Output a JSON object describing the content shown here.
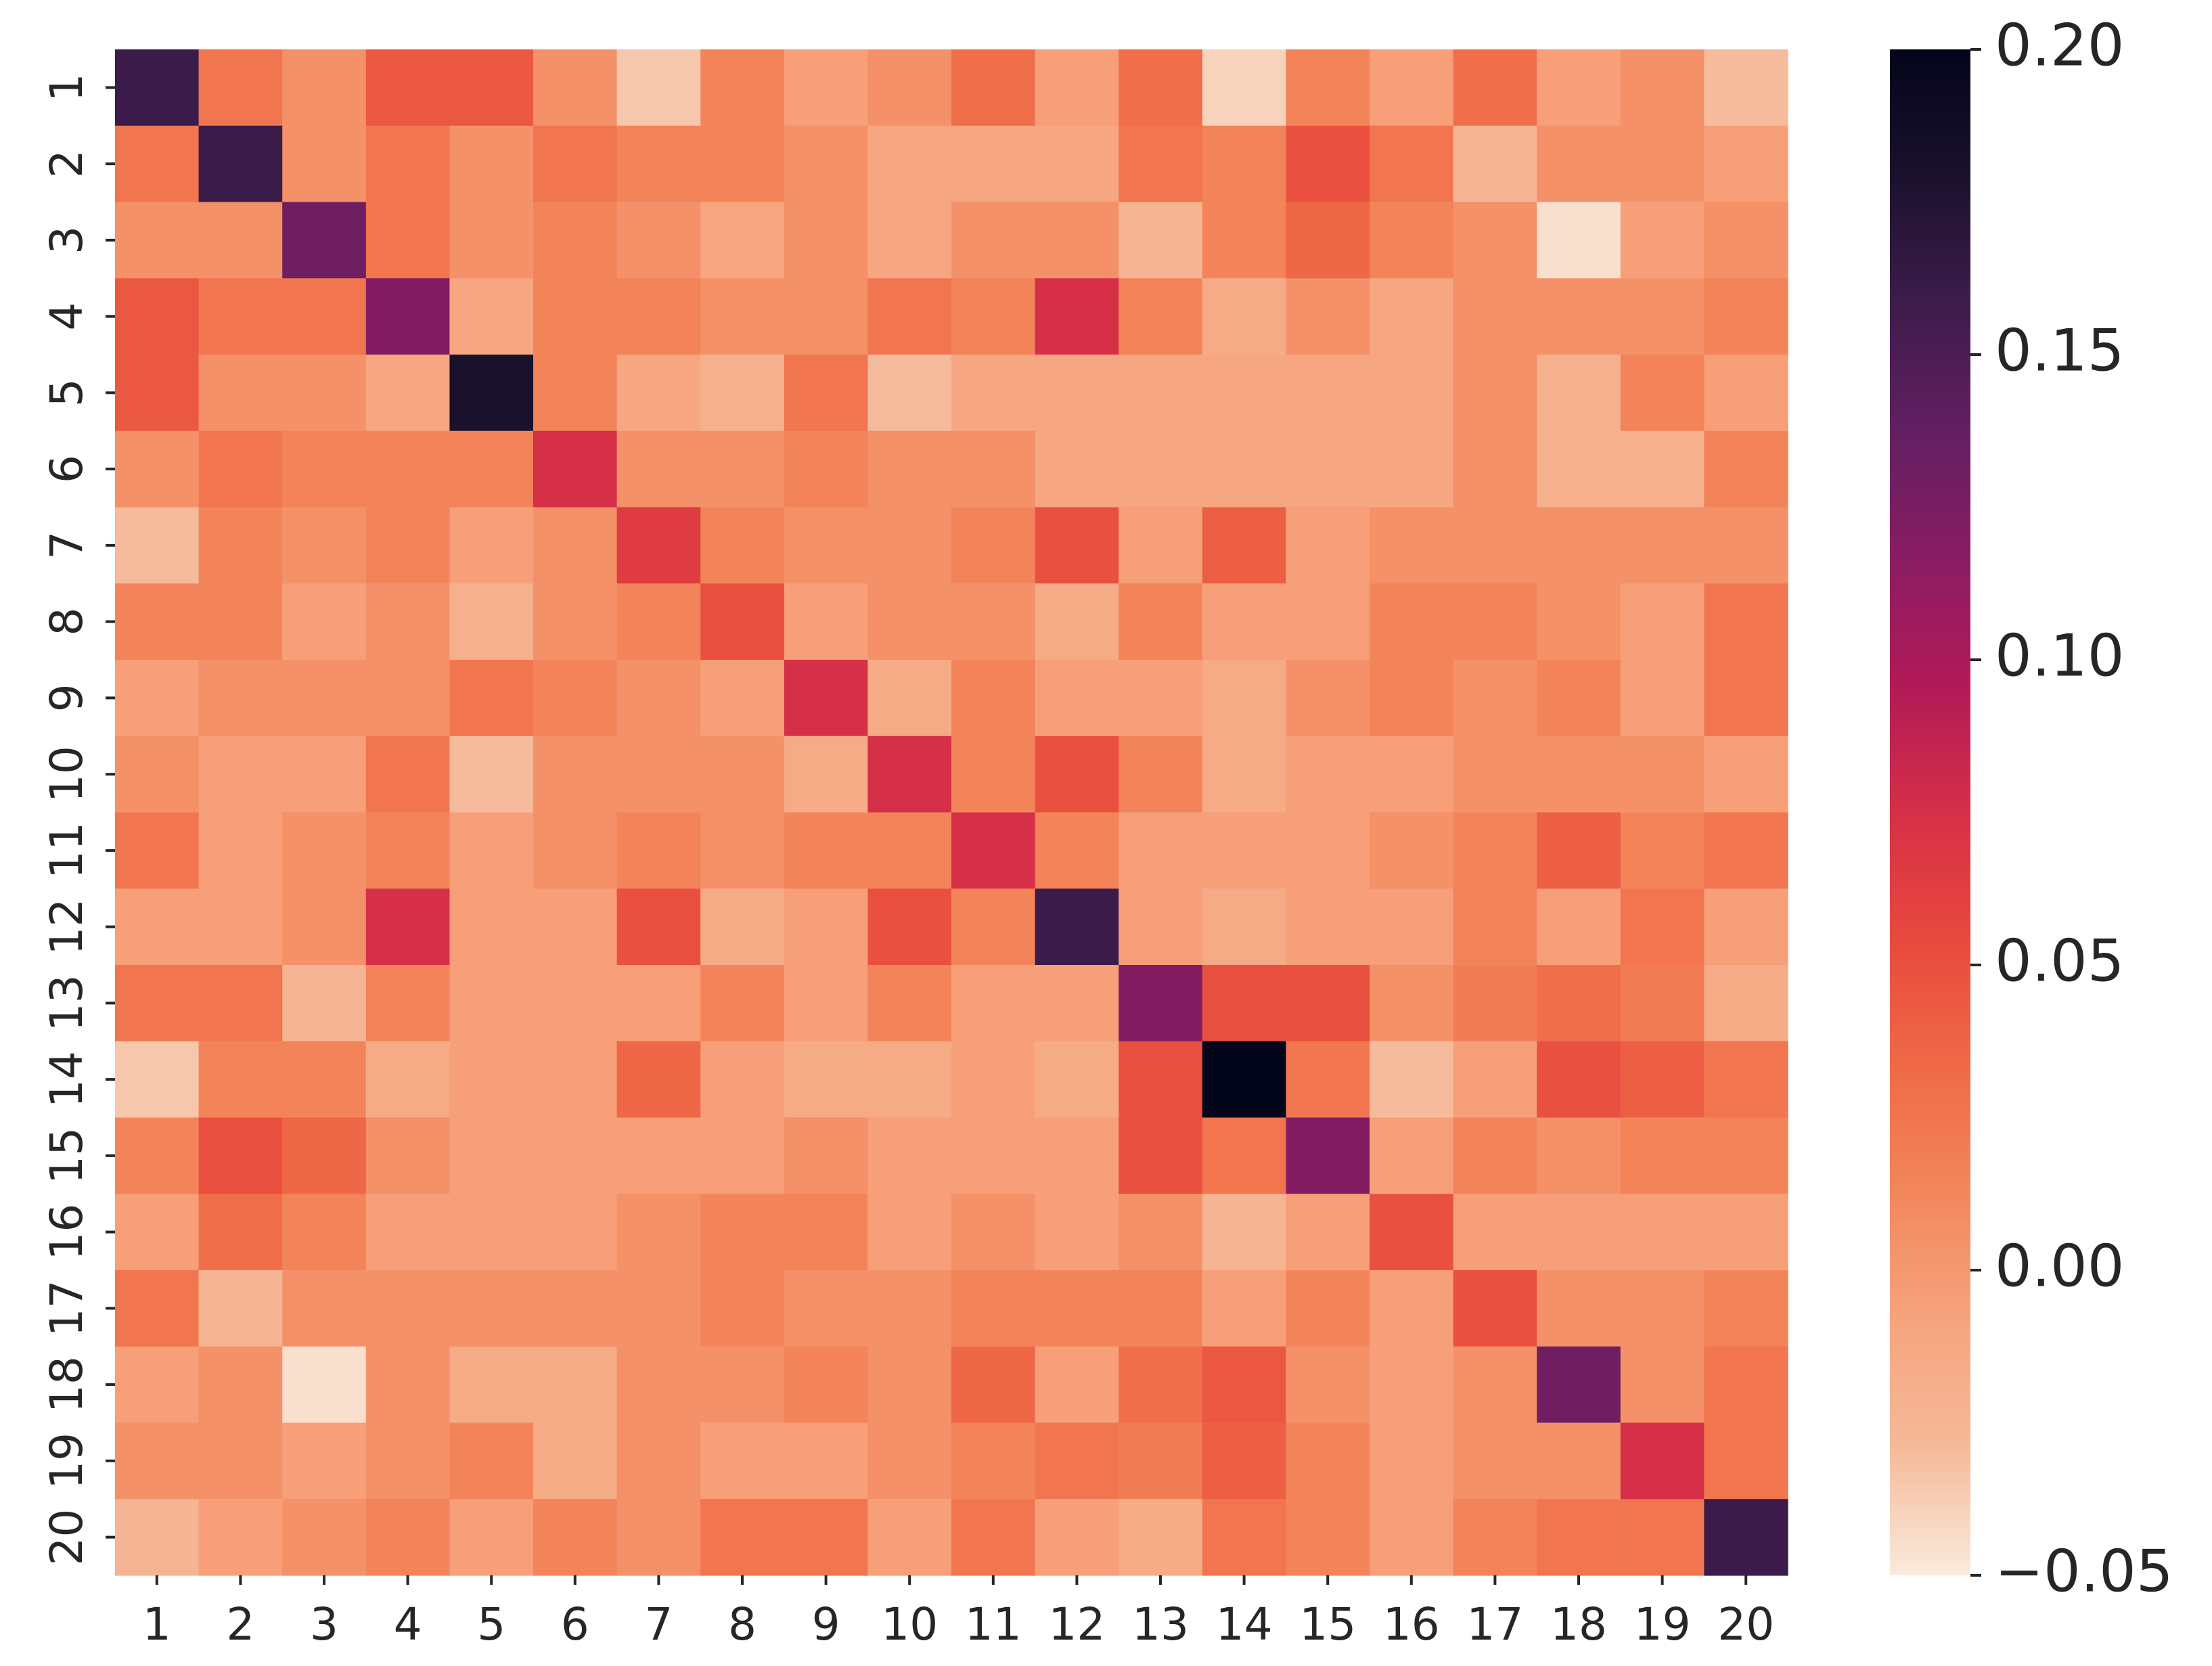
{
  "chart_data": {
    "type": "heatmap",
    "title": "",
    "xlabel": "",
    "ylabel": "",
    "x_categories": [
      "1",
      "2",
      "3",
      "4",
      "5",
      "6",
      "7",
      "8",
      "9",
      "10",
      "11",
      "12",
      "13",
      "14",
      "15",
      "16",
      "17",
      "18",
      "19",
      "20"
    ],
    "y_categories": [
      "1",
      "2",
      "3",
      "4",
      "5",
      "6",
      "7",
      "8",
      "9",
      "10",
      "11",
      "12",
      "13",
      "14",
      "15",
      "16",
      "17",
      "18",
      "19",
      "20"
    ],
    "values": [
      [
        0.16,
        0.025,
        0.005,
        0.045,
        0.045,
        0.005,
        -0.035,
        0.015,
        -0.005,
        0.005,
        0.03,
        -0.005,
        0.03,
        -0.04,
        0.015,
        -0.005,
        0.03,
        -0.005,
        0.005,
        -0.03
      ],
      [
        0.025,
        0.16,
        0.005,
        0.025,
        0.005,
        0.025,
        0.015,
        0.015,
        0.005,
        -0.01,
        -0.01,
        -0.01,
        0.025,
        0.015,
        0.05,
        0.025,
        -0.025,
        0.005,
        0.005,
        -0.005
      ],
      [
        0.005,
        0.005,
        0.13,
        0.025,
        0.005,
        0.015,
        0.005,
        -0.01,
        0.005,
        -0.01,
        0.005,
        0.005,
        -0.025,
        0.015,
        0.035,
        0.015,
        0.005,
        -0.045,
        -0.005,
        0.005
      ],
      [
        0.045,
        0.025,
        0.025,
        0.12,
        -0.01,
        0.015,
        0.015,
        0.005,
        0.005,
        0.025,
        0.015,
        0.075,
        0.015,
        -0.015,
        0.005,
        -0.01,
        0.005,
        0.005,
        0.005,
        0.015
      ],
      [
        0.045,
        0.005,
        0.005,
        -0.01,
        0.18,
        0.015,
        -0.01,
        -0.02,
        0.025,
        -0.03,
        -0.01,
        -0.01,
        -0.01,
        -0.01,
        -0.01,
        -0.01,
        0.005,
        -0.02,
        0.015,
        -0.005
      ],
      [
        0.005,
        0.025,
        0.015,
        0.015,
        0.015,
        0.075,
        0.005,
        0.005,
        0.015,
        0.005,
        0.005,
        -0.01,
        -0.01,
        -0.01,
        -0.01,
        -0.01,
        0.005,
        -0.02,
        -0.02,
        0.015
      ],
      [
        -0.03,
        0.015,
        0.005,
        0.015,
        -0.005,
        0.005,
        0.065,
        0.015,
        0.005,
        0.005,
        0.015,
        0.05,
        -0.005,
        0.04,
        -0.005,
        0.005,
        0.005,
        0.005,
        0.005,
        0.005
      ],
      [
        0.015,
        0.015,
        -0.005,
        0.005,
        -0.02,
        0.005,
        0.015,
        0.05,
        -0.005,
        0.005,
        0.005,
        -0.015,
        0.015,
        -0.005,
        -0.005,
        0.015,
        0.015,
        0.005,
        -0.005,
        0.025
      ],
      [
        -0.005,
        0.005,
        0.005,
        0.005,
        0.025,
        0.015,
        0.005,
        -0.005,
        0.075,
        -0.015,
        0.015,
        -0.005,
        -0.005,
        -0.015,
        0.005,
        0.015,
        0.005,
        0.015,
        -0.005,
        0.025
      ],
      [
        0.005,
        -0.005,
        -0.005,
        0.025,
        -0.03,
        0.005,
        0.005,
        0.005,
        -0.015,
        0.075,
        0.015,
        0.05,
        0.015,
        -0.015,
        -0.005,
        -0.005,
        0.005,
        0.005,
        0.005,
        -0.005
      ],
      [
        0.025,
        -0.005,
        0.005,
        0.015,
        -0.005,
        0.005,
        0.015,
        0.005,
        0.015,
        0.015,
        0.075,
        0.015,
        -0.005,
        -0.005,
        -0.005,
        0.005,
        0.015,
        0.04,
        0.015,
        0.025
      ],
      [
        -0.005,
        -0.005,
        0.005,
        0.075,
        -0.005,
        -0.005,
        0.05,
        -0.015,
        -0.005,
        0.05,
        0.015,
        0.16,
        -0.005,
        -0.015,
        -0.005,
        -0.005,
        0.015,
        -0.005,
        0.025,
        -0.005
      ],
      [
        0.025,
        0.025,
        -0.025,
        0.015,
        -0.005,
        -0.005,
        -0.005,
        0.015,
        -0.005,
        0.015,
        -0.005,
        -0.005,
        0.12,
        0.05,
        0.05,
        0.005,
        0.02,
        0.03,
        0.02,
        -0.015
      ],
      [
        -0.035,
        0.015,
        0.015,
        -0.015,
        -0.005,
        -0.005,
        0.035,
        -0.005,
        -0.015,
        -0.015,
        -0.005,
        -0.015,
        0.05,
        0.2,
        0.025,
        -0.03,
        -0.005,
        0.05,
        0.04,
        0.025
      ],
      [
        0.015,
        0.05,
        0.035,
        0.005,
        -0.005,
        -0.005,
        -0.005,
        -0.005,
        0.005,
        -0.005,
        -0.005,
        -0.005,
        0.05,
        0.025,
        0.12,
        -0.005,
        0.015,
        0.005,
        0.015,
        0.015
      ],
      [
        -0.005,
        0.03,
        0.015,
        -0.005,
        -0.005,
        -0.005,
        0.005,
        0.015,
        0.015,
        -0.005,
        0.005,
        -0.005,
        0.005,
        -0.025,
        -0.005,
        0.05,
        -0.005,
        -0.005,
        -0.005,
        -0.005
      ],
      [
        0.025,
        -0.025,
        0.005,
        0.005,
        0.005,
        0.005,
        0.005,
        0.015,
        0.005,
        0.005,
        0.015,
        0.015,
        0.015,
        -0.005,
        0.015,
        -0.005,
        0.05,
        0.005,
        0.005,
        0.015
      ],
      [
        -0.005,
        0.005,
        -0.045,
        0.005,
        -0.015,
        -0.015,
        0.005,
        0.005,
        0.015,
        0.005,
        0.035,
        -0.005,
        0.03,
        0.045,
        0.005,
        -0.005,
        0.005,
        0.13,
        0.005,
        0.025
      ],
      [
        0.005,
        0.005,
        -0.005,
        0.005,
        0.015,
        -0.015,
        0.005,
        -0.005,
        -0.005,
        0.005,
        0.015,
        0.025,
        0.02,
        0.04,
        0.015,
        -0.005,
        0.005,
        0.005,
        0.075,
        0.025
      ],
      [
        -0.025,
        -0.005,
        0.005,
        0.015,
        -0.005,
        0.015,
        0.005,
        0.025,
        0.025,
        -0.005,
        0.025,
        -0.005,
        -0.015,
        0.025,
        0.015,
        -0.005,
        0.015,
        0.025,
        0.025,
        0.16
      ]
    ],
    "vmin": -0.05,
    "vmax": 0.2,
    "colormap": "rocket_r",
    "colormap_stops": [
      "#faebdd",
      "#f5b999",
      "#f6a47e",
      "#f3875c",
      "#ef6a47",
      "#e8493d",
      "#d62f48",
      "#b11a57",
      "#8a1c63",
      "#621f61",
      "#3d1c4c",
      "#1b112d",
      "#03051a"
    ],
    "colorbar": {
      "ticks": [
        -0.05,
        0.0,
        0.05,
        0.1,
        0.15,
        0.2
      ],
      "tick_labels": [
        "−0.05",
        "0.00",
        "0.05",
        "0.10",
        "0.15",
        "0.20"
      ]
    },
    "grid": false,
    "legend": "colorbar-right"
  }
}
